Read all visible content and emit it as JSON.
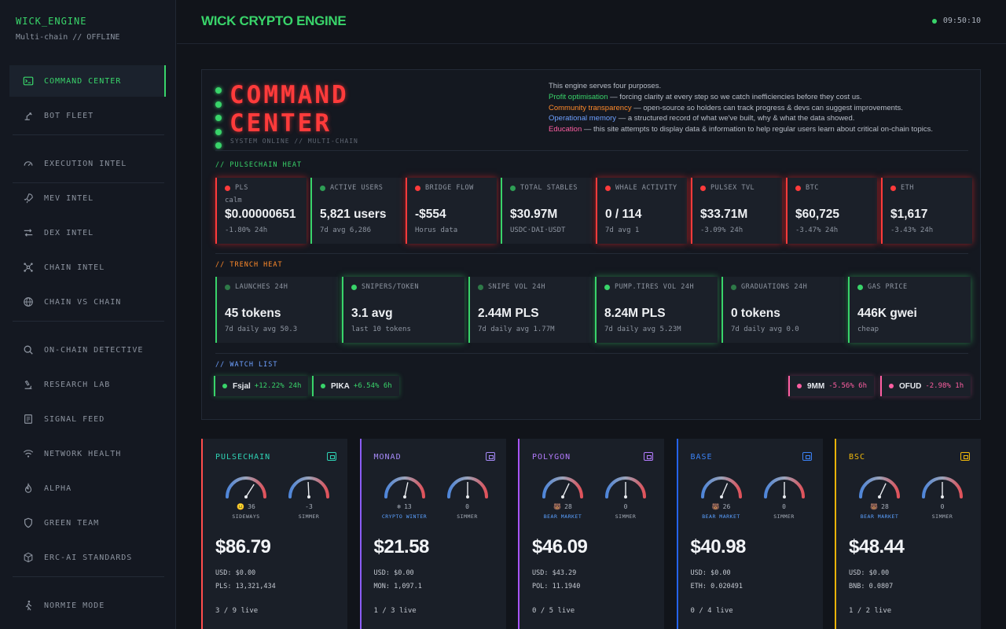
{
  "sidebar": {
    "brand": "WICK_ENGINE",
    "subtitle": "Multi-chain // OFFLINE",
    "items": [
      {
        "label": "COMMAND CENTER",
        "icon": "terminal-icon"
      },
      {
        "label": "BOT FLEET",
        "icon": "robot-arm-icon"
      },
      {
        "label": "EXECUTION INTEL",
        "icon": "gauge-icon"
      },
      {
        "label": "MEV INTEL",
        "icon": "rocket-icon"
      },
      {
        "label": "DEX INTEL",
        "icon": "swap-arrows-icon"
      },
      {
        "label": "CHAIN INTEL",
        "icon": "network-nodes-icon"
      },
      {
        "label": "CHAIN VS CHAIN",
        "icon": "globe-icon"
      },
      {
        "label": "ON-CHAIN DETECTIVE",
        "icon": "magnifier-icon"
      },
      {
        "label": "RESEARCH LAB",
        "icon": "microscope-icon"
      },
      {
        "label": "SIGNAL FEED",
        "icon": "document-icon"
      },
      {
        "label": "NETWORK HEALTH",
        "icon": "wifi-signal-icon"
      },
      {
        "label": "ALPHA",
        "icon": "flame-icon"
      },
      {
        "label": "GREEN TEAM",
        "icon": "shield-icon"
      },
      {
        "label": "ERC-AI STANDARDS",
        "icon": "cube-icon"
      },
      {
        "label": "NORMIE MODE",
        "icon": "person-walking-icon"
      }
    ]
  },
  "header": {
    "title": "WICK CRYPTO ENGINE",
    "clock": "09:50:10"
  },
  "command": {
    "title_line1": "COMMAND",
    "title_line2": "CENTER",
    "subtitle": "SYSTEM ONLINE // MULTI-CHAIN",
    "intro": "This engine serves four purposes.",
    "purposes": [
      {
        "head": "Profit optimisation",
        "text": " — forcing clarity at every step so we catch inefficiencies before they cost us.",
        "color": "#39d46a"
      },
      {
        "head": "Community transparency",
        "text": " — open-source so holders can track progress & devs can suggest improvements.",
        "color": "#ff8a2a"
      },
      {
        "head": "Operational memory",
        "text": " — a structured record of what we've built, why & what the data showed.",
        "color": "#6ea0ff"
      },
      {
        "head": "Education",
        "text": " — this site attempts to display data & information to help regular users learn about critical on-chain topics.",
        "color": "#ff5fa2"
      }
    ]
  },
  "pulse_heat": {
    "label": "// PULSECHAIN HEAT",
    "cards": [
      {
        "label": "PLS",
        "sub": "calm",
        "value": "$0.00000651",
        "foot": "-1.80% 24h",
        "status": "red"
      },
      {
        "label": "ACTIVE USERS",
        "sub": "",
        "value": "5,821 users",
        "foot": "7d avg 6,286",
        "status": "green"
      },
      {
        "label": "BRIDGE FLOW",
        "sub": "",
        "value": "-$554",
        "foot": "Horus data",
        "status": "red"
      },
      {
        "label": "TOTAL STABLES",
        "sub": "",
        "value": "$30.97M",
        "foot": "USDC·DAI·USDT",
        "status": "green"
      },
      {
        "label": "WHALE ACTIVITY",
        "sub": "",
        "value": "0 / 114",
        "foot": "7d avg 1",
        "status": "red"
      },
      {
        "label": "PULSEX TVL",
        "sub": "",
        "value": "$33.71M",
        "foot": "-3.09% 24h",
        "status": "red"
      },
      {
        "label": "BTC",
        "sub": "",
        "value": "$60,725",
        "foot": "-3.47% 24h",
        "status": "red"
      },
      {
        "label": "ETH",
        "sub": "",
        "value": "$1,617",
        "foot": "-3.43% 24h",
        "status": "red"
      }
    ]
  },
  "trench_heat": {
    "label": "// TRENCH HEAT",
    "cards": [
      {
        "label": "LAUNCHES 24H",
        "value": "45 tokens",
        "foot": "7d daily avg 50.3",
        "active": false
      },
      {
        "label": "SNIPERS/TOKEN",
        "value": "3.1 avg",
        "foot": "last 10 tokens",
        "active": true
      },
      {
        "label": "SNIPE VOL 24H",
        "value": "2.44M PLS",
        "foot": "7d daily avg 1.77M",
        "active": false
      },
      {
        "label": "PUMP.TIRES VOL 24H",
        "value": "8.24M PLS",
        "foot": "7d daily avg 5.23M",
        "active": true
      },
      {
        "label": "GRADUATIONS 24H",
        "value": "0 tokens",
        "foot": "7d daily avg 0.0",
        "active": false
      },
      {
        "label": "GAS PRICE",
        "value": "446K gwei",
        "foot": "cheap",
        "active": true
      }
    ]
  },
  "watch": {
    "label": "// WATCH LIST",
    "up": [
      {
        "name": "Fsjal",
        "change": "+12.22% 24h"
      },
      {
        "name": "PIKA",
        "change": "+6.54% 6h"
      }
    ],
    "down": [
      {
        "name": "9MM",
        "change": "-5.56% 6h"
      },
      {
        "name": "OFUD",
        "change": "-2.98% 1h"
      }
    ]
  },
  "chains": [
    {
      "name": "PULSECHAIN",
      "color": "#ff4d4d",
      "label_color": "#2fd3b5",
      "wallet_color": "#2fd3b5",
      "g1_value": 36,
      "g1_text": "36",
      "g1_emoji": "😐",
      "g1_label": "SIDEWAYS",
      "g1_label_color": "#a8afba",
      "g2_value": -3,
      "g2_text": "-3",
      "g2_label": "SIMMER",
      "price": "$86.79",
      "usd": "USD: $0.00",
      "bal": "PLS: 13,321,434",
      "live": "3 / 9 live"
    },
    {
      "name": "MONAD",
      "color": "#8b5cf6",
      "label_color": "#a78bfa",
      "wallet_color": "#a78bfa",
      "g1_value": 13,
      "g1_text": "13",
      "g1_emoji": "❄",
      "g1_label": "CRYPTO WINTER",
      "g1_label_color": "#5aa0ff",
      "g2_value": 0,
      "g2_text": "0",
      "g2_label": "SIMMER",
      "price": "$21.58",
      "usd": "USD: $0.00",
      "bal": "MON: 1,097.1",
      "live": "1 / 3 live"
    },
    {
      "name": "POLYGON",
      "color": "#a855f7",
      "label_color": "#b47cff",
      "wallet_color": "#b47cff",
      "g1_value": 28,
      "g1_text": "28",
      "g1_emoji": "🐻",
      "g1_label": "BEAR MARKET",
      "g1_label_color": "#5aa0ff",
      "g2_value": 0,
      "g2_text": "0",
      "g2_label": "SIMMER",
      "price": "$46.09",
      "usd": "USD: $43.29",
      "bal": "POL: 11.1940",
      "live": "0 / 5 live"
    },
    {
      "name": "BASE",
      "color": "#2563eb",
      "label_color": "#3b82f6",
      "wallet_color": "#3b82f6",
      "g1_value": 26,
      "g1_text": "26",
      "g1_emoji": "🐻",
      "g1_label": "BEAR MARKET",
      "g1_label_color": "#5aa0ff",
      "g2_value": 0,
      "g2_text": "0",
      "g2_label": "SIMMER",
      "price": "$40.98",
      "usd": "USD: $0.00",
      "bal": "ETH: 0.020491",
      "live": "0 / 4 live"
    },
    {
      "name": "BSC",
      "color": "#eab308",
      "label_color": "#f0b90b",
      "wallet_color": "#f0b90b",
      "g1_value": 28,
      "g1_text": "28",
      "g1_emoji": "🐻",
      "g1_label": "BEAR MARKET",
      "g1_label_color": "#5aa0ff",
      "g2_value": 0,
      "g2_text": "0",
      "g2_label": "SIMMER",
      "price": "$48.44",
      "usd": "USD: $0.00",
      "bal": "BNB: 0.0807",
      "live": "1 / 2 live"
    }
  ]
}
